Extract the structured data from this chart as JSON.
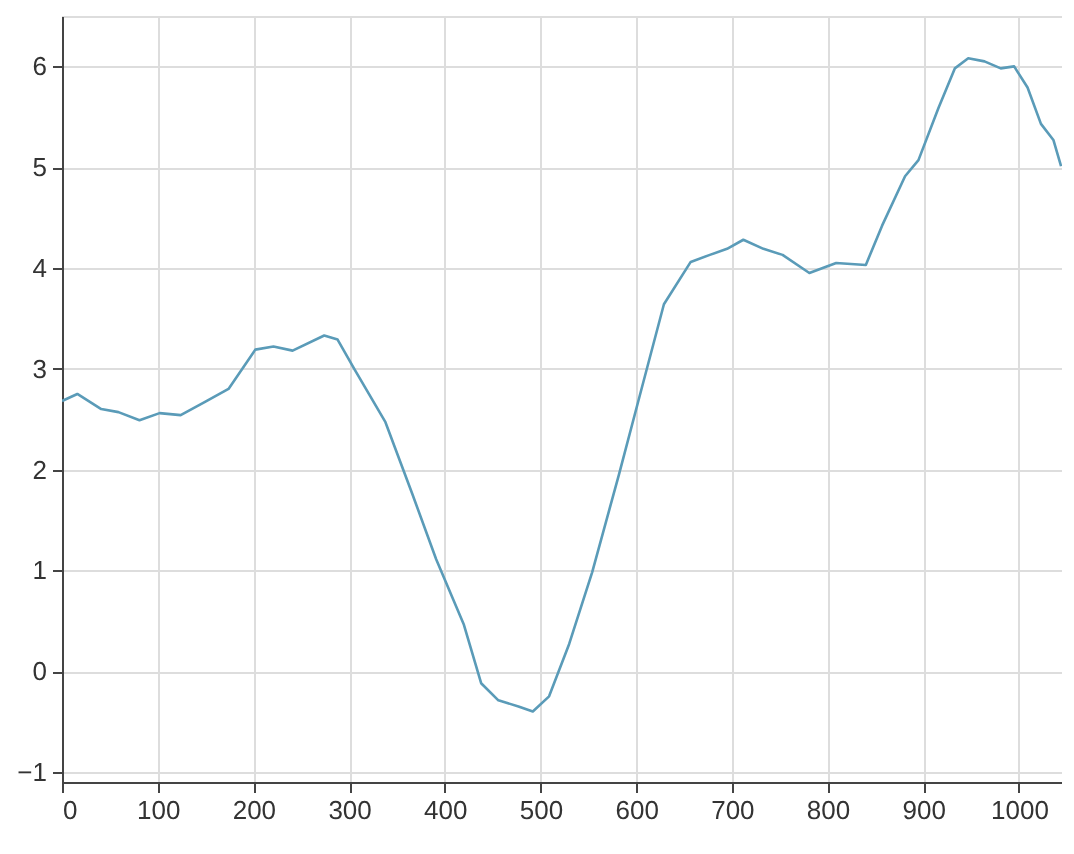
{
  "chart_data": {
    "type": "line",
    "xlim": [
      0,
      1045
    ],
    "ylim": [
      -1.1,
      6.5
    ],
    "xticks": [
      0,
      100,
      200,
      300,
      400,
      500,
      600,
      700,
      800,
      900,
      1000
    ],
    "yticks": [
      -1,
      0,
      1,
      2,
      3,
      4,
      5,
      6
    ],
    "grid": true,
    "line_style": "solid",
    "marker": "none",
    "series": [
      {
        "color": "#5a9bb8",
        "x": [
          0,
          16,
          41,
          59,
          81,
          102,
          124,
          149,
          174,
          202,
          221,
          241,
          274,
          288,
          306,
          338,
          366,
          391,
          420,
          438,
          456,
          477,
          492,
          509,
          530,
          554,
          582,
          602,
          629,
          657,
          677,
          695,
          712,
          733,
          753,
          781,
          809,
          840,
          857,
          881,
          895,
          916,
          933,
          947,
          964,
          981,
          995,
          1009,
          1023,
          1036,
          1044
        ],
        "values": [
          2.68,
          2.75,
          2.6,
          2.57,
          2.49,
          2.56,
          2.54,
          2.67,
          2.8,
          3.19,
          3.22,
          3.18,
          3.33,
          3.29,
          2.99,
          2.47,
          1.76,
          1.11,
          0.46,
          -0.12,
          -0.29,
          -0.35,
          -0.4,
          -0.25,
          0.27,
          0.98,
          1.95,
          2.67,
          3.64,
          4.06,
          4.13,
          4.19,
          4.28,
          4.19,
          4.13,
          3.95,
          4.05,
          4.03,
          4.42,
          4.91,
          5.07,
          5.59,
          5.98,
          6.08,
          6.05,
          5.98,
          6.0,
          5.79,
          5.43,
          5.27,
          5.01
        ]
      }
    ]
  }
}
